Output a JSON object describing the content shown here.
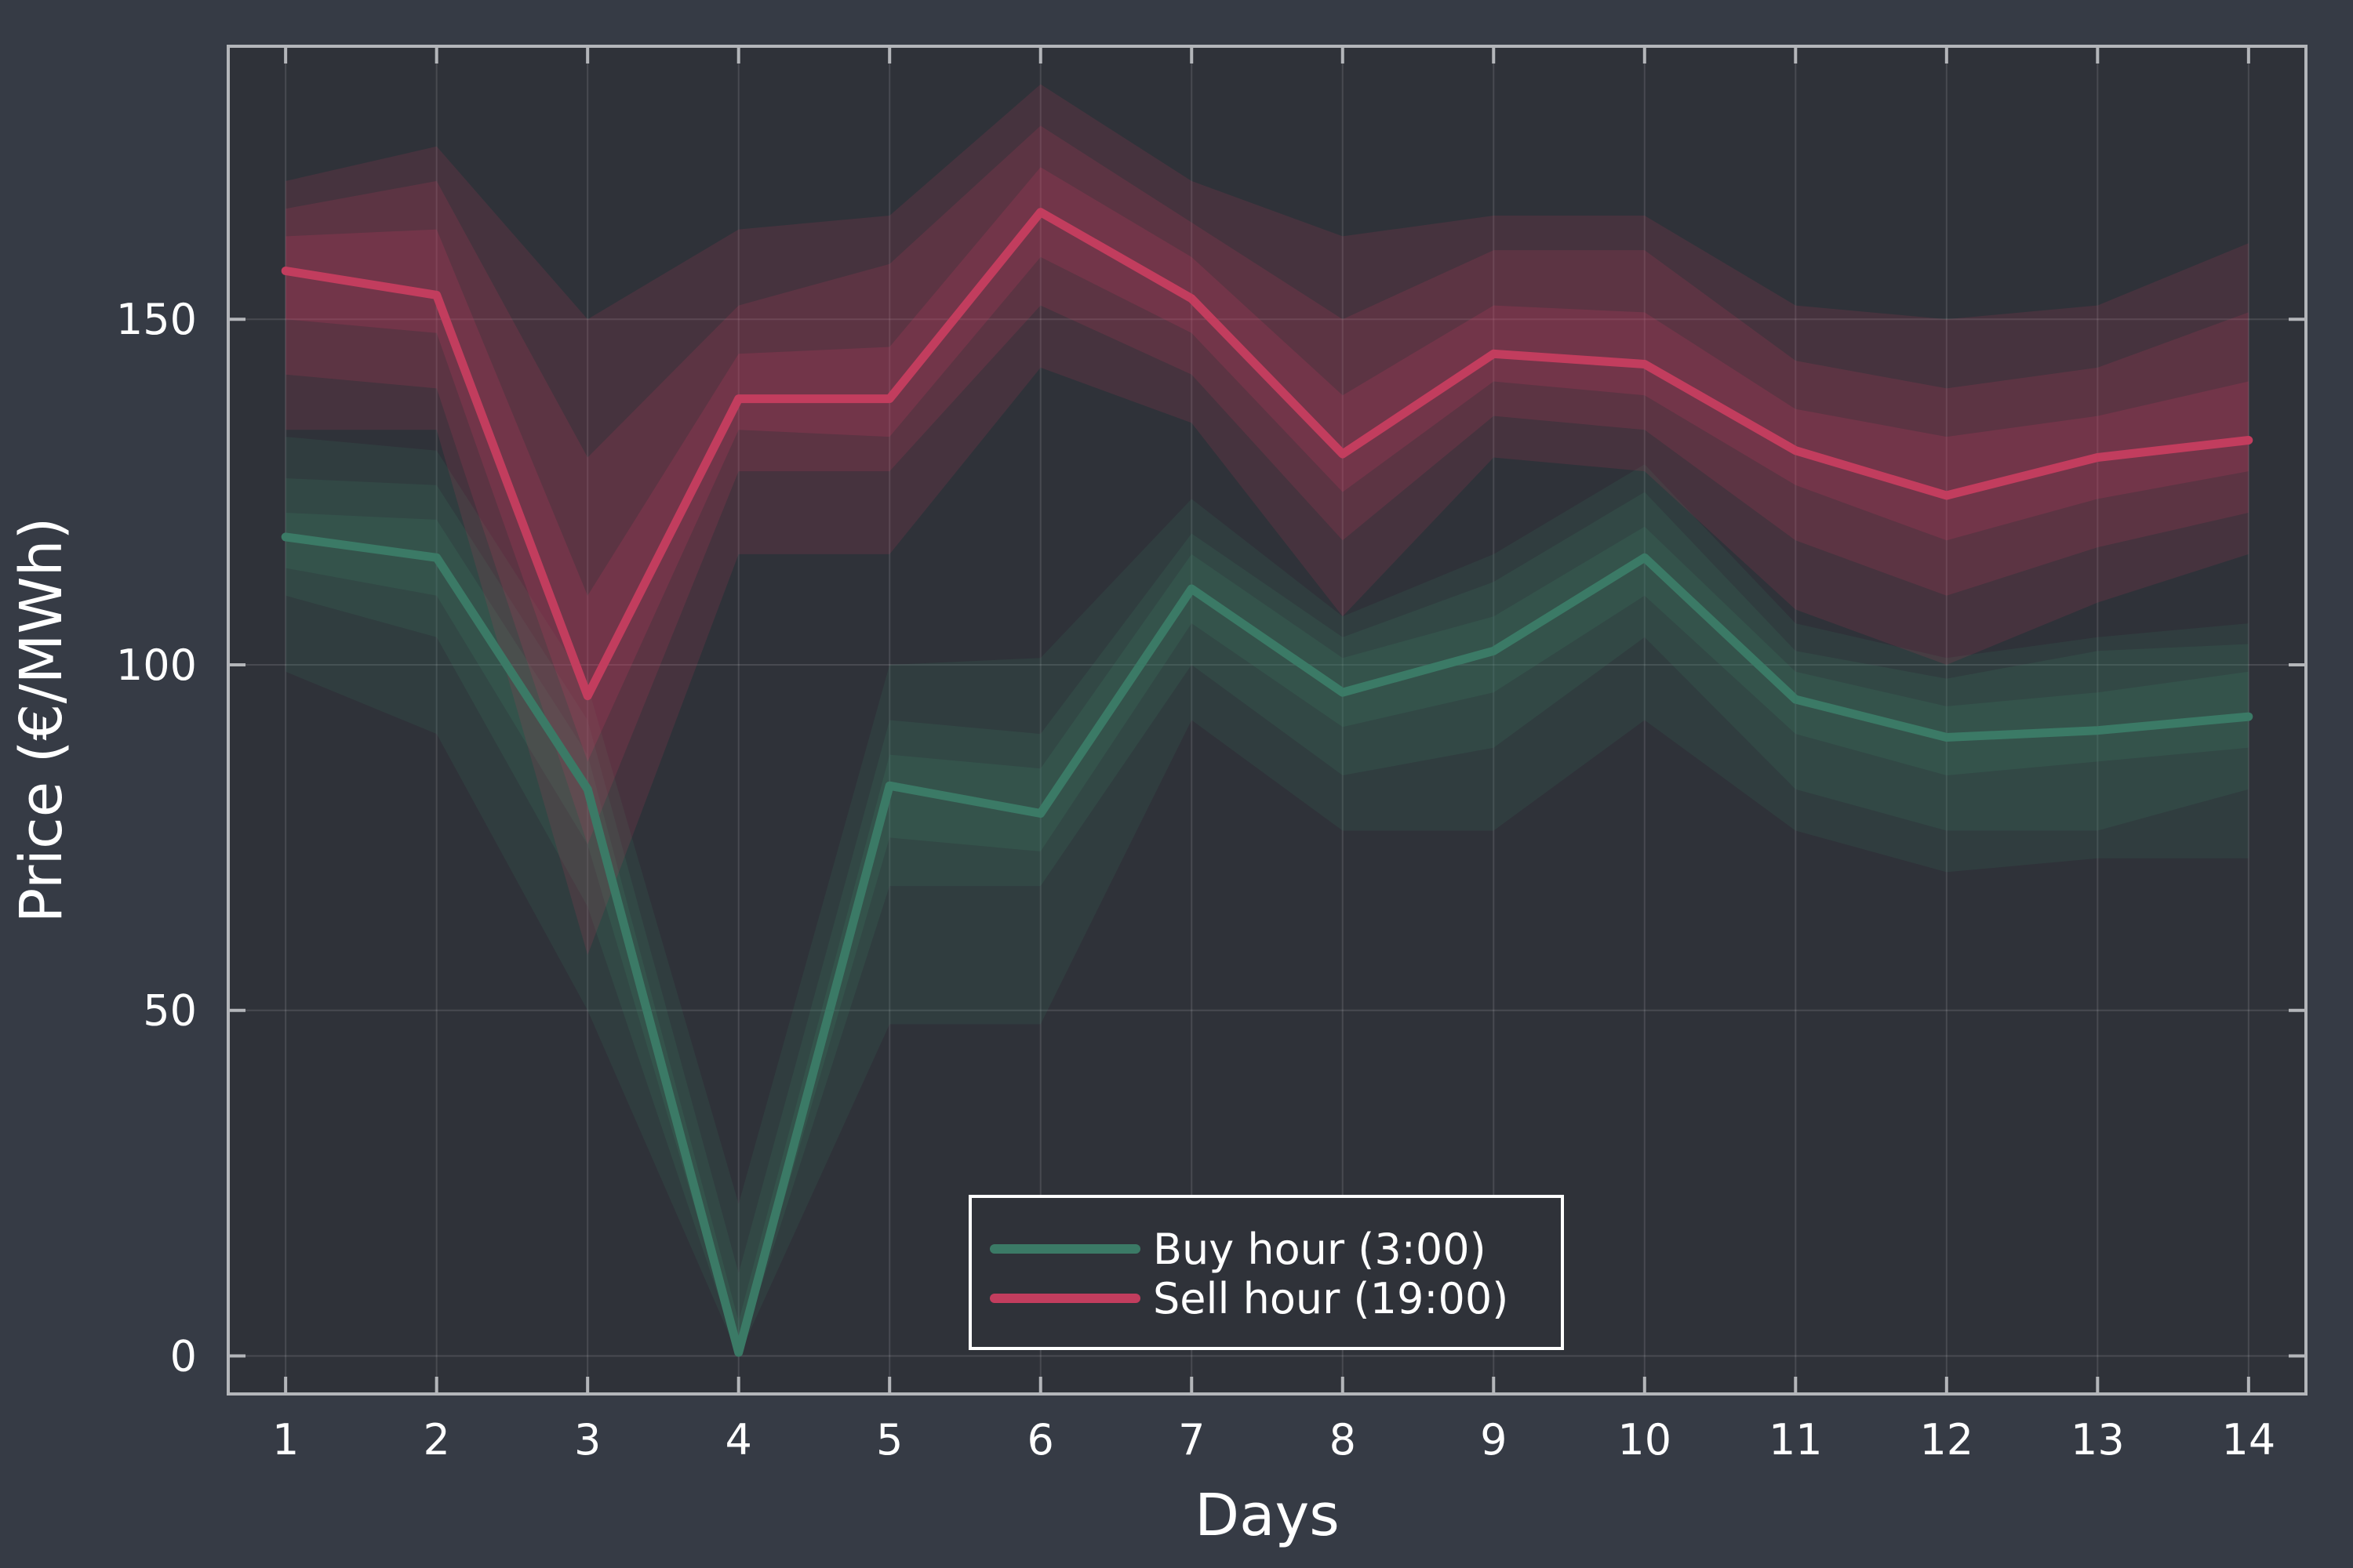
{
  "chart_data": {
    "type": "line",
    "xlabel": "Days",
    "ylabel": "Price (€/MWh)",
    "xlim": [
      0.62,
      14.38
    ],
    "ylim": [
      -5.5,
      189.5
    ],
    "x": [
      1,
      2,
      3,
      4,
      5,
      6,
      7,
      8,
      9,
      10,
      11,
      12,
      13,
      14
    ],
    "x_ticks": [
      1,
      2,
      3,
      4,
      5,
      6,
      7,
      8,
      9,
      10,
      11,
      12,
      13,
      14
    ],
    "y_ticks": [
      0,
      50,
      100,
      150
    ],
    "grid": true,
    "legend_position": "bottom-center",
    "series": [
      {
        "name": "Buy hour (3:00)",
        "color": "#3b7a66",
        "values": [
          118.5,
          115.5,
          82,
          0.5,
          82.5,
          78.5,
          111,
          96,
          102,
          115.5,
          95,
          89.5,
          90.5,
          92.5
        ],
        "bands": [
          {
            "lower": [
              99,
              90,
              50,
              0,
              48,
              48,
              92,
              76,
              76,
              92,
              76,
              70,
              72,
              72
            ],
            "upper": [
              133,
              131,
              97,
              22,
              100,
              101,
              124,
              107,
              116,
              129,
              106,
              101,
              104,
              106
            ]
          },
          {
            "lower": [
              110,
              104,
              65,
              0,
              68,
              68,
              100,
              84,
              88,
              104,
              82,
              76,
              76,
              82
            ],
            "upper": [
              127,
              126,
              92,
              12,
              92,
              90,
              119,
              104,
              112,
              125,
              102,
              98,
              102,
              103
            ]
          },
          {
            "lower": [
              114,
              110,
              74,
              0,
              75,
              73,
              106,
              91,
              96,
              110,
              90,
              84,
              86,
              88
            ],
            "upper": [
              122,
              121,
              87,
              5,
              87,
              85,
              116,
              101,
              107,
              120,
              99,
              94,
              96,
              99
            ]
          }
        ]
      },
      {
        "name": "Sell hour (19:00)",
        "color": "#c23d5e",
        "values": [
          157,
          153.5,
          95.5,
          138.5,
          138.5,
          165.5,
          153,
          130.5,
          145,
          143.5,
          131,
          124.5,
          130,
          132.5
        ],
        "bands": [
          {
            "lower": [
              134,
              134,
              58,
              116,
              116,
              143,
              135,
              107,
              130,
              128,
              108,
              100,
              109,
              116
            ],
            "upper": [
              170,
              175,
              150,
              163,
              165,
              184,
              170,
              162,
              165,
              165,
              152,
              150,
              152,
              161
            ]
          },
          {
            "lower": [
              142,
              140,
              74,
              128,
              128,
              152,
              142,
              118,
              136,
              134,
              118,
              110,
              117,
              122
            ],
            "upper": [
              166,
              170,
              130,
              152,
              158,
              178,
              164,
              150,
              160,
              160,
              144,
              140,
              143,
              151
            ]
          },
          {
            "lower": [
              150,
              148,
              86,
              134,
              133,
              159,
              148,
              125,
              141,
              139,
              126,
              118,
              124,
              128
            ],
            "upper": [
              162,
              163,
              110,
              145,
              146,
              172,
              159,
              139,
              152,
              151,
              137,
              133,
              136,
              141
            ]
          }
        ]
      }
    ]
  },
  "colors": {
    "background": "#363b45",
    "plot_background": "#2f3239",
    "frame": "#b4b6ba",
    "grid": "#ffffff",
    "text": "#ffffff"
  }
}
